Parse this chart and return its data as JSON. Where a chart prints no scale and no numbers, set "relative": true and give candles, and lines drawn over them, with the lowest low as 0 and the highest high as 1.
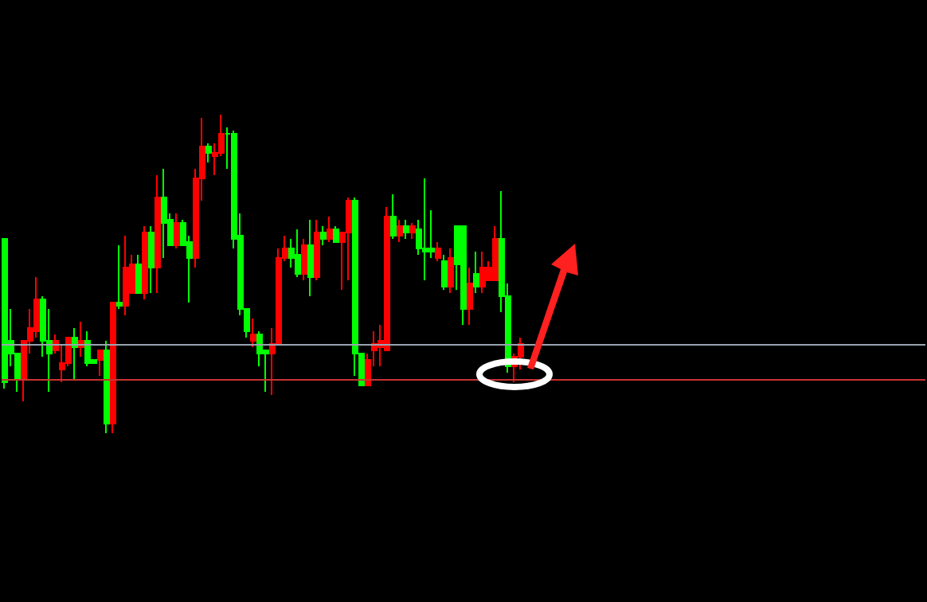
{
  "chart_data": {
    "type": "candlestick",
    "relative": true,
    "categories": [
      null,
      null,
      null,
      null,
      null,
      null,
      null,
      null,
      null,
      null,
      null,
      null,
      null,
      null,
      null,
      null,
      null,
      null,
      null,
      null,
      null,
      null,
      null,
      null,
      null,
      null,
      null,
      null,
      null,
      null,
      null,
      null,
      null,
      null,
      null,
      null,
      null,
      null,
      null,
      null,
      null,
      null,
      null,
      null,
      null,
      null,
      null,
      null,
      null,
      null,
      null,
      null,
      null,
      null,
      null,
      null,
      null,
      null,
      null,
      null,
      null,
      null,
      null,
      null,
      null,
      null,
      null,
      null,
      null,
      null,
      null,
      null,
      null,
      null,
      null,
      null,
      null,
      null,
      null,
      null,
      null,
      null,
      null,
      null,
      null,
      null,
      null,
      null,
      null,
      null,
      null,
      null,
      null,
      null,
      null,
      null,
      null,
      null,
      null,
      null,
      null,
      null,
      null,
      null,
      null,
      null,
      null,
      null,
      null,
      null,
      null,
      null,
      null,
      null,
      null,
      null,
      null,
      null,
      null,
      null,
      null,
      null,
      null,
      null,
      null,
      null,
      null,
      null,
      null,
      null,
      null,
      null,
      null,
      null,
      null,
      null,
      null,
      null,
      null,
      null,
      null,
      null,
      null,
      null,
      null
    ],
    "ohlc": [
      [
        0.61,
        0.61,
        0.14,
        0.16
      ],
      [
        0.29,
        0.39,
        0.21,
        0.25
      ],
      [
        0.25,
        0.25,
        0.13,
        0.17
      ],
      [
        0.17,
        0.29,
        0.1,
        0.29
      ],
      [
        0.29,
        0.39,
        0.25,
        0.33
      ],
      [
        0.32,
        0.49,
        0.3,
        0.42
      ],
      [
        0.42,
        0.43,
        0.24,
        0.29
      ],
      [
        0.29,
        0.39,
        0.13,
        0.25
      ],
      [
        0.26,
        0.31,
        0.25,
        0.29
      ],
      [
        0.2,
        0.28,
        0.16,
        0.22
      ],
      [
        0.22,
        0.3,
        0.21,
        0.3
      ],
      [
        0.3,
        0.33,
        0.17,
        0.27
      ],
      [
        0.27,
        0.35,
        0.24,
        0.29
      ],
      [
        0.29,
        0.32,
        0.21,
        0.22
      ],
      [
        0.23,
        0.23,
        0.22,
        0.22
      ],
      [
        0.23,
        0.26,
        0.18,
        0.26
      ],
      [
        0.26,
        0.29,
        0,
        0.03
      ],
      [
        0.03,
        0.41,
        0,
        0.41
      ],
      [
        0.41,
        0.59,
        0.39,
        0.4
      ],
      [
        0.4,
        0.62,
        0.37,
        0.52
      ],
      [
        0.44,
        0.56,
        0.44,
        0.53
      ],
      [
        0.53,
        0.56,
        0.44,
        0.44
      ],
      [
        0.44,
        0.65,
        0.42,
        0.63
      ],
      [
        0.63,
        0.65,
        0.44,
        0.52
      ],
      [
        0.52,
        0.81,
        0.44,
        0.74
      ],
      [
        0.74,
        0.83,
        0.55,
        0.66
      ],
      [
        0.67,
        0.69,
        0.59,
        0.59
      ],
      [
        0.59,
        0.69,
        0.58,
        0.66
      ],
      [
        0.66,
        0.67,
        0.59,
        0.59
      ],
      [
        0.6,
        0.62,
        0.41,
        0.55
      ],
      [
        0.55,
        0.83,
        0.52,
        0.8
      ],
      [
        0.8,
        0.99,
        0.73,
        0.9
      ],
      [
        0.9,
        0.91,
        0.85,
        0.88
      ],
      [
        0.87,
        0.91,
        0.81,
        0.88
      ],
      [
        0.88,
        1,
        0.87,
        0.94
      ],
      [
        0.94,
        0.96,
        0.83,
        0.94
      ],
      [
        0.94,
        0.95,
        0.58,
        0.61
      ],
      [
        0.62,
        0.69,
        0.37,
        0.39
      ],
      [
        0.39,
        0.39,
        0.3,
        0.32
      ],
      [
        0.29,
        0.36,
        0.27,
        0.31
      ],
      [
        0.31,
        0.32,
        0.21,
        0.25
      ],
      [
        0.26,
        0.26,
        0.13,
        0.25
      ],
      [
        0.25,
        0.33,
        0.12,
        0.28
      ],
      [
        0.28,
        0.58,
        0.28,
        0.55
      ],
      [
        0.55,
        0.62,
        0.54,
        0.58
      ],
      [
        0.58,
        0.61,
        0.52,
        0.55
      ],
      [
        0.56,
        0.64,
        0.49,
        0.5
      ],
      [
        0.5,
        0.61,
        0.48,
        0.59
      ],
      [
        0.59,
        0.67,
        0.43,
        0.49
      ],
      [
        0.49,
        0.67,
        0.48,
        0.63
      ],
      [
        0.63,
        0.65,
        0.59,
        0.61
      ],
      [
        0.61,
        0.68,
        0.6,
        0.64
      ],
      [
        0.64,
        0.65,
        0.6,
        0.6
      ],
      [
        0.6,
        0.63,
        0.45,
        0.63
      ],
      [
        0.63,
        0.74,
        0.48,
        0.73
      ],
      [
        0.73,
        0.74,
        0.18,
        0.25
      ],
      [
        0.25,
        0.25,
        0.15,
        0.15
      ],
      [
        0.15,
        0.25,
        0.15,
        0.23
      ],
      [
        0.26,
        0.32,
        0.21,
        0.28
      ],
      [
        0.27,
        0.34,
        0.21,
        0.29
      ],
      [
        0.26,
        0.71,
        0.26,
        0.68
      ],
      [
        0.68,
        0.75,
        0.61,
        0.62
      ],
      [
        0.62,
        0.67,
        0.6,
        0.65
      ],
      [
        0.65,
        0.67,
        0.61,
        0.63
      ],
      [
        0.63,
        0.66,
        0.61,
        0.65
      ],
      [
        0.64,
        0.67,
        0.56,
        0.58
      ],
      [
        0.58,
        0.8,
        0.48,
        0.57
      ],
      [
        0.58,
        0.7,
        0.55,
        0.57
      ],
      [
        0.55,
        0.6,
        0.54,
        0.58
      ],
      [
        0.54,
        0.56,
        0.45,
        0.46
      ],
      [
        0.46,
        0.58,
        0.44,
        0.55
      ],
      [
        0.65,
        0.65,
        0.45,
        0.53
      ],
      [
        0.65,
        0.65,
        0.34,
        0.39
      ],
      [
        0.39,
        0.52,
        0.34,
        0.47
      ],
      [
        0.5,
        0.57,
        0.44,
        0.46
      ],
      [
        0.46,
        0.57,
        0.44,
        0.52
      ],
      [
        0.48,
        0.54,
        0.48,
        0.52
      ],
      [
        0.48,
        0.65,
        0.48,
        0.61
      ],
      [
        0.61,
        0.76,
        0.38,
        0.43
      ],
      [
        0.43,
        0.47,
        0.19,
        0.21
      ],
      [
        0.21,
        0.25,
        0.16,
        0.24
      ],
      [
        0.24,
        0.3,
        0.2,
        0.28
      ],
      null,
      null,
      null,
      null,
      null,
      null,
      null,
      null,
      null,
      null,
      null,
      null,
      null,
      null,
      null,
      null,
      null,
      null,
      null,
      null,
      null,
      null,
      null,
      null,
      null,
      null,
      null,
      null,
      null,
      null,
      null,
      null,
      null,
      null,
      null,
      null,
      null,
      null,
      null,
      null,
      null,
      null,
      null,
      null,
      null,
      null,
      null,
      null,
      null,
      null,
      null,
      null,
      null,
      null,
      null,
      null,
      null,
      null,
      null,
      null,
      null,
      null,
      null
    ],
    "colors": [
      "#00ff00",
      "#00ff00",
      "#00ff00",
      "#ff0000",
      "#ff0000",
      "#ff0000",
      "#00ff00",
      "#00ff00",
      "#ff0000",
      "#ff0000",
      "#ff0000",
      "#00ff00",
      "#ff0000",
      "#00ff00",
      "#00ff00",
      "#ff0000",
      "#00ff00",
      "#ff0000",
      "#00ff00",
      "#ff0000",
      "#ff0000",
      "#00ff00",
      "#ff0000",
      "#00ff00",
      "#ff0000",
      "#00ff00",
      "#00ff00",
      "#ff0000",
      "#00ff00",
      "#00ff00",
      "#ff0000",
      "#ff0000",
      "#00ff00",
      "#ff0000",
      "#ff0000",
      "#00ff00",
      "#00ff00",
      "#00ff00",
      "#00ff00",
      "#ff0000",
      "#00ff00",
      "#00ff00",
      "#ff0000",
      "#ff0000",
      "#ff0000",
      "#00ff00",
      "#00ff00",
      "#ff0000",
      "#00ff00",
      "#ff0000",
      "#00ff00",
      "#ff0000",
      "#00ff00",
      "#ff0000",
      "#ff0000",
      "#00ff00",
      "#00ff00",
      "#ff0000",
      "#ff0000",
      "#ff0000",
      "#ff0000",
      "#00ff00",
      "#ff0000",
      "#00ff00",
      "#ff0000",
      "#00ff00",
      "#00ff00",
      "#00ff00",
      "#ff0000",
      "#00ff00",
      "#ff0000",
      "#00ff00",
      "#00ff00",
      "#ff0000",
      "#00ff00",
      "#ff0000",
      "#ff0000",
      "#ff0000",
      "#00ff00",
      "#00ff00",
      "#ff0000",
      "#ff0000",
      null,
      null,
      null,
      null,
      null,
      null,
      null,
      null,
      null,
      null,
      null,
      null,
      null,
      null,
      null,
      null,
      null,
      null,
      null,
      null,
      null,
      null,
      null,
      null,
      null,
      null,
      null,
      null,
      null,
      null,
      null,
      null,
      null,
      null,
      null,
      null,
      null,
      null,
      null,
      null,
      null,
      null,
      null,
      null,
      null,
      null,
      null,
      null,
      null,
      null,
      null,
      null,
      null,
      null,
      null,
      null,
      null,
      null,
      null,
      null,
      null,
      null,
      null
    ],
    "ref_lines": [
      {
        "axis": "y",
        "value": 0.28,
        "color": "#9aa4b0"
      },
      {
        "axis": "y",
        "value": 0.17,
        "color": "#c83232"
      }
    ]
  }
}
